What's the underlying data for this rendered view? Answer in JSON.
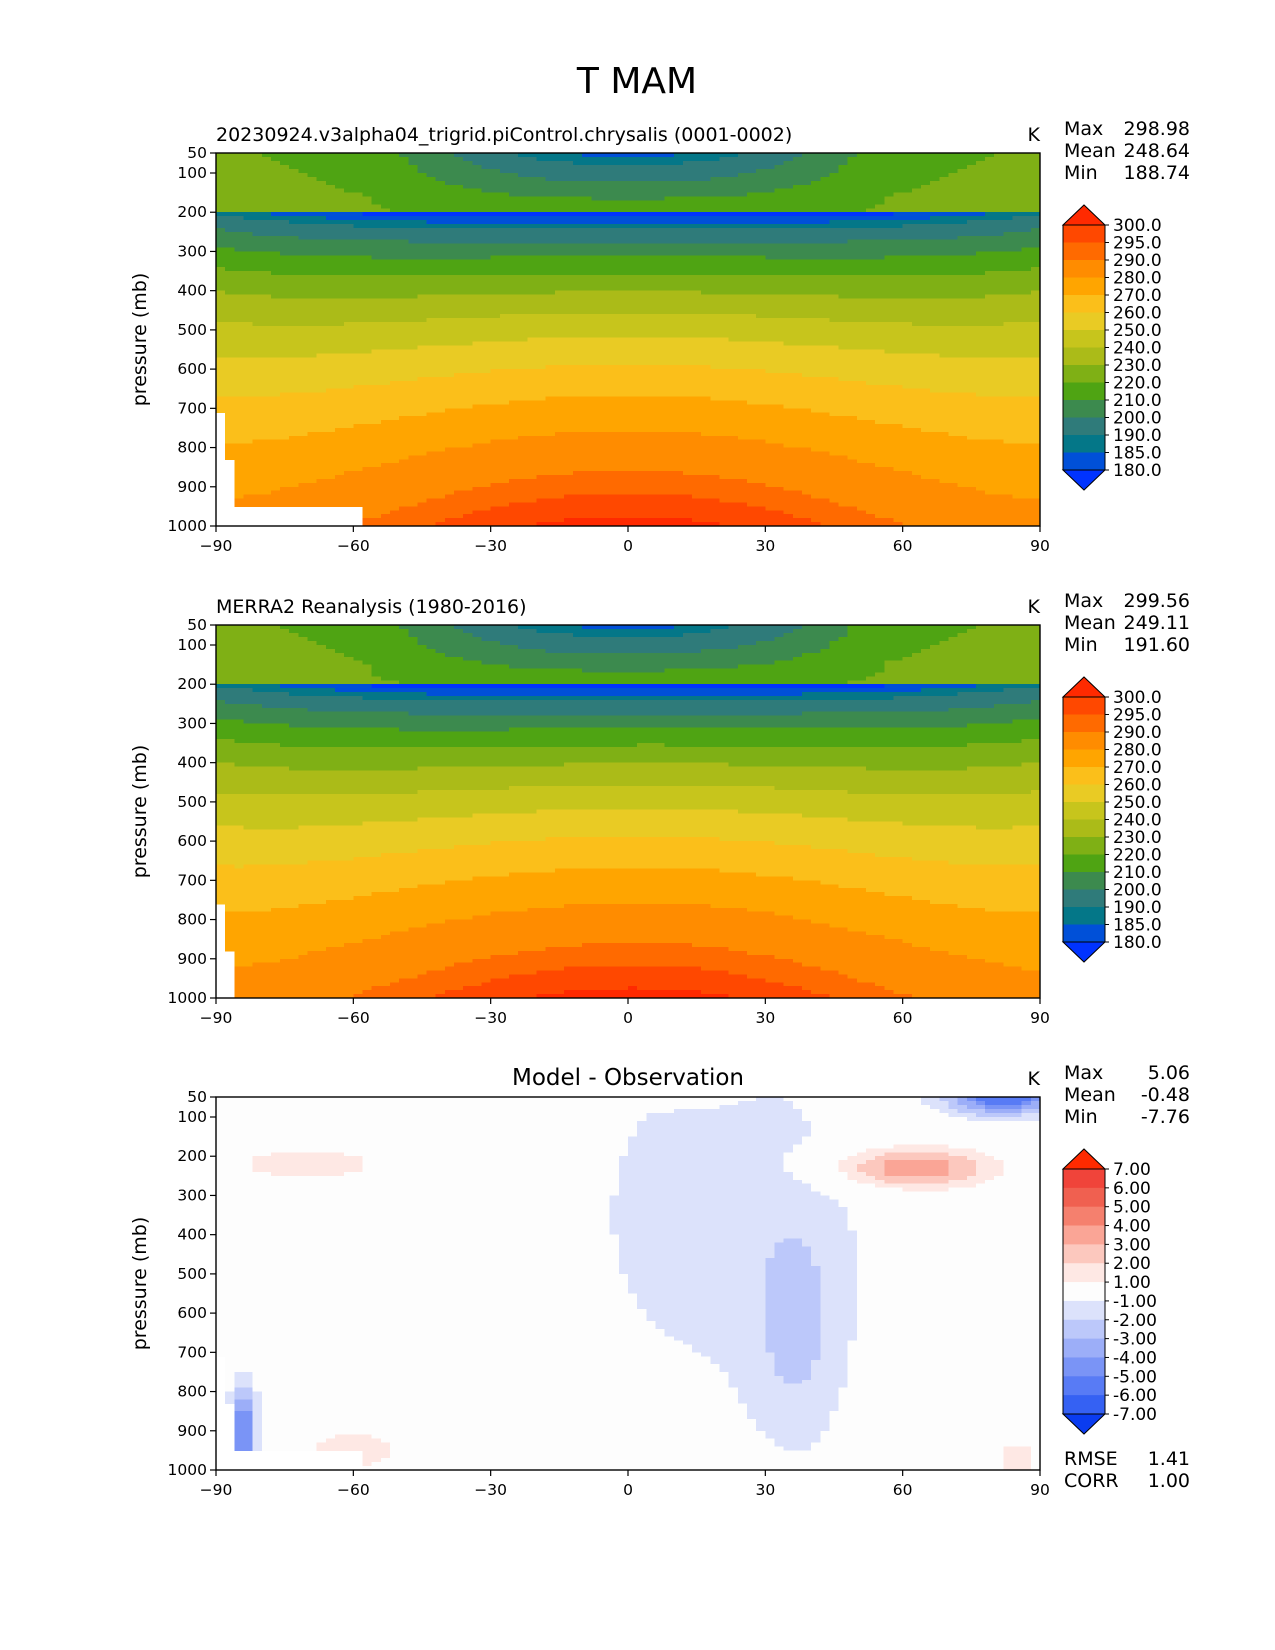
{
  "figure": {
    "title": "T MAM"
  },
  "chart_data": [
    {
      "type": "heatmap",
      "title": "20230924.v3alpha04_trigrid.piControl.chrysalis (0001-0002)",
      "units": "K",
      "ylabel": "pressure (mb)",
      "x_ticks": [
        "−90",
        "−60",
        "−30",
        "0",
        "30",
        "60",
        "90"
      ],
      "y_ticks": [
        "50",
        "100",
        "200",
        "300",
        "400",
        "500",
        "600",
        "700",
        "800",
        "900",
        "1000"
      ],
      "xlim": [
        -90,
        90
      ],
      "ylim": [
        1000,
        50
      ],
      "stats": {
        "max_label": "Max",
        "max": "298.98",
        "mean_label": "Mean",
        "mean": "248.64",
        "min_label": "Min",
        "min": "188.74"
      },
      "colorbar": {
        "levels": [
          "300.0",
          "295.0",
          "290.0",
          "280.0",
          "270.0",
          "260.0",
          "250.0",
          "240.0",
          "230.0",
          "220.0",
          "210.0",
          "200.0",
          "190.0",
          "185.0",
          "180.0"
        ],
        "colors": [
          "#FF2A00",
          "#FF4800",
          "#FF6A00",
          "#FF8C00",
          "#FFA500",
          "#FBBF1A",
          "#E9CB24",
          "#C7C51C",
          "#ABBB18",
          "#7FB015",
          "#4FA413",
          "#3C8A4E",
          "#2F7B7A",
          "#047788",
          "#0050D8",
          "#0033FF"
        ]
      },
      "field": "model",
      "min_value": 188.74,
      "max_value": 298.98
    },
    {
      "type": "heatmap",
      "title": "MERRA2 Reanalysis (1980-2016)",
      "units": "K",
      "ylabel": "pressure (mb)",
      "x_ticks": [
        "−90",
        "−60",
        "−30",
        "0",
        "30",
        "60",
        "90"
      ],
      "y_ticks": [
        "50",
        "100",
        "200",
        "300",
        "400",
        "500",
        "600",
        "700",
        "800",
        "900",
        "1000"
      ],
      "xlim": [
        -90,
        90
      ],
      "ylim": [
        1000,
        50
      ],
      "stats": {
        "max_label": "Max",
        "max": "299.56",
        "mean_label": "Mean",
        "mean": "249.11",
        "min_label": "Min",
        "min": "191.60"
      },
      "colorbar": {
        "levels": [
          "300.0",
          "295.0",
          "290.0",
          "280.0",
          "270.0",
          "260.0",
          "250.0",
          "240.0",
          "230.0",
          "220.0",
          "210.0",
          "200.0",
          "190.0",
          "185.0",
          "180.0"
        ],
        "colors": [
          "#FF2A00",
          "#FF4800",
          "#FF6A00",
          "#FF8C00",
          "#FFA500",
          "#FBBF1A",
          "#E9CB24",
          "#C7C51C",
          "#ABBB18",
          "#7FB015",
          "#4FA413",
          "#3C8A4E",
          "#2F7B7A",
          "#047788",
          "#0050D8",
          "#0033FF"
        ]
      },
      "field": "obs",
      "min_value": 191.6,
      "max_value": 299.56
    },
    {
      "type": "heatmap",
      "title": "Model - Observation",
      "units": "K",
      "ylabel": "pressure (mb)",
      "x_ticks": [
        "−90",
        "−60",
        "−30",
        "0",
        "30",
        "60",
        "90"
      ],
      "y_ticks": [
        "50",
        "100",
        "200",
        "300",
        "400",
        "500",
        "600",
        "700",
        "800",
        "900",
        "1000"
      ],
      "xlim": [
        -90,
        90
      ],
      "ylim": [
        1000,
        50
      ],
      "stats": {
        "max_label": "Max",
        "max": "5.06",
        "mean_label": "Mean",
        "mean": "-0.48",
        "min_label": "Min",
        "min": "-7.76"
      },
      "colorbar": {
        "levels": [
          "7.00",
          "6.00",
          "5.00",
          "4.00",
          "3.00",
          "2.00",
          "1.00",
          "-1.00",
          "-2.00",
          "-3.00",
          "-4.00",
          "-5.00",
          "-6.00",
          "-7.00"
        ],
        "colors": [
          "#FF2A00",
          "#F0443A",
          "#F06050",
          "#F5806E",
          "#FAA596",
          "#FCC8BE",
          "#FEE8E4",
          "#FDFDFD",
          "#DCE2FB",
          "#BCC8FA",
          "#9CAEF8",
          "#7A94F6",
          "#587BF5",
          "#3561F3",
          "#0A3CF0"
        ]
      },
      "error_stats": {
        "rmse_label": "RMSE",
        "rmse": "1.41",
        "corr_label": "CORR",
        "corr": "1.00"
      },
      "field": "diff",
      "min_value": -7.76,
      "max_value": 5.06
    }
  ]
}
